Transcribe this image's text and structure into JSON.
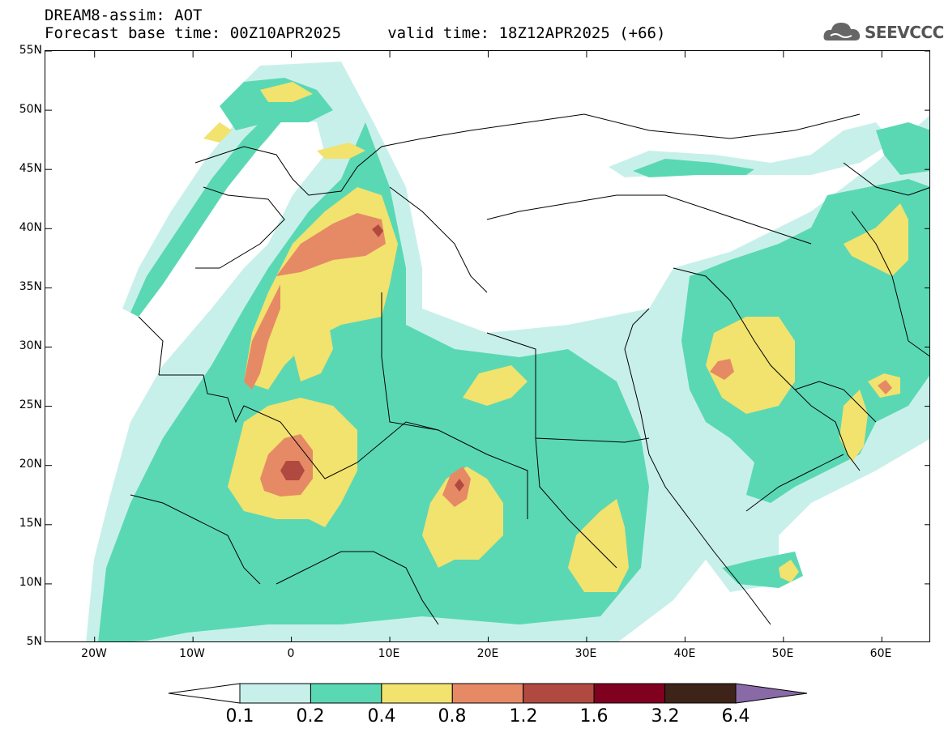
{
  "header": {
    "title_line1": "DREAM8-assim: AOT",
    "title_line2": "Forecast base time: 00Z10APR2025     valid time: 18Z12APR2025 (+66)",
    "logo_text": "SEEVCCC"
  },
  "map": {
    "lon_range": [
      -25,
      65
    ],
    "lat_range": [
      5,
      55
    ],
    "lat_ticks": [
      "55N",
      "50N",
      "45N",
      "40N",
      "35N",
      "30N",
      "25N",
      "20N",
      "15N",
      "10N",
      "5N"
    ],
    "lon_ticks": [
      "20W",
      "10W",
      "0",
      "10E",
      "20E",
      "30E",
      "40E",
      "50E",
      "60E"
    ],
    "colors": {
      "c01": "#c8f0ea",
      "c02": "#5ad8b4",
      "c04": "#f2e26e",
      "c08": "#e68a66",
      "c12": "#b04a40",
      "c16": "#800020",
      "c32": "#3e2418",
      "c64": "#8a6aa6"
    }
  },
  "colorbar": {
    "labels": [
      "0.1",
      "0.2",
      "0.4",
      "0.8",
      "1.2",
      "1.6",
      "3.2",
      "6.4"
    ],
    "colors": [
      "#c8f0ea",
      "#5ad8b4",
      "#f2e26e",
      "#e68a66",
      "#b04a40",
      "#800020",
      "#3e2418"
    ],
    "under_color": "#ffffff",
    "over_color": "#8a6aa6"
  }
}
